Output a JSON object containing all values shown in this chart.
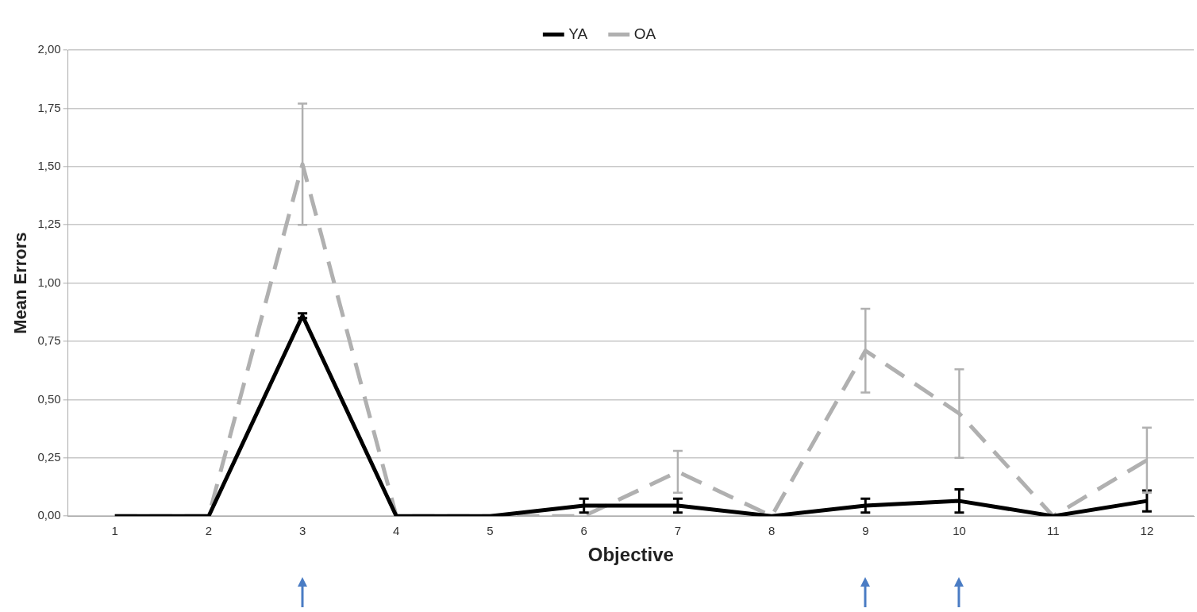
{
  "chart_data": {
    "type": "line",
    "xlabel": "Objective",
    "ylabel": "Mean Errors",
    "categories": [
      "1",
      "2",
      "3",
      "4",
      "5",
      "6",
      "7",
      "8",
      "9",
      "10",
      "11",
      "12"
    ],
    "ylim": [
      0,
      2
    ],
    "yticks": [
      {
        "value": 0,
        "label": "0,00"
      },
      {
        "value": 0.25,
        "label": "0,25"
      },
      {
        "value": 0.5,
        "label": "0,50"
      },
      {
        "value": 0.75,
        "label": "0,75"
      },
      {
        "value": 1,
        "label": "1,00"
      },
      {
        "value": 1.25,
        "label": "1,25"
      },
      {
        "value": 1.5,
        "label": "1,50"
      },
      {
        "value": 1.75,
        "label": "1,75"
      },
      {
        "value": 2,
        "label": "2,00"
      }
    ],
    "grid": "y",
    "legend": "top",
    "marker": "none",
    "series": [
      {
        "name": "YA",
        "color": "#000000",
        "line_style": "solid",
        "values": [
          0,
          0,
          0.86,
          0,
          0,
          0.045,
          0.045,
          0,
          0.045,
          0.065,
          0,
          0.065
        ],
        "errors": [
          null,
          null,
          0.01,
          null,
          null,
          0.03,
          0.03,
          null,
          0.03,
          0.05,
          null,
          0.045
        ]
      },
      {
        "name": "OA",
        "color": "#b0b0b0",
        "line_style": "dashed",
        "values": [
          0,
          0,
          1.51,
          0,
          0,
          0,
          0.19,
          0,
          0.71,
          0.44,
          0,
          0.24
        ],
        "errors": [
          null,
          null,
          0.26,
          null,
          null,
          null,
          0.09,
          null,
          0.18,
          0.19,
          null,
          0.14
        ]
      }
    ]
  }
}
